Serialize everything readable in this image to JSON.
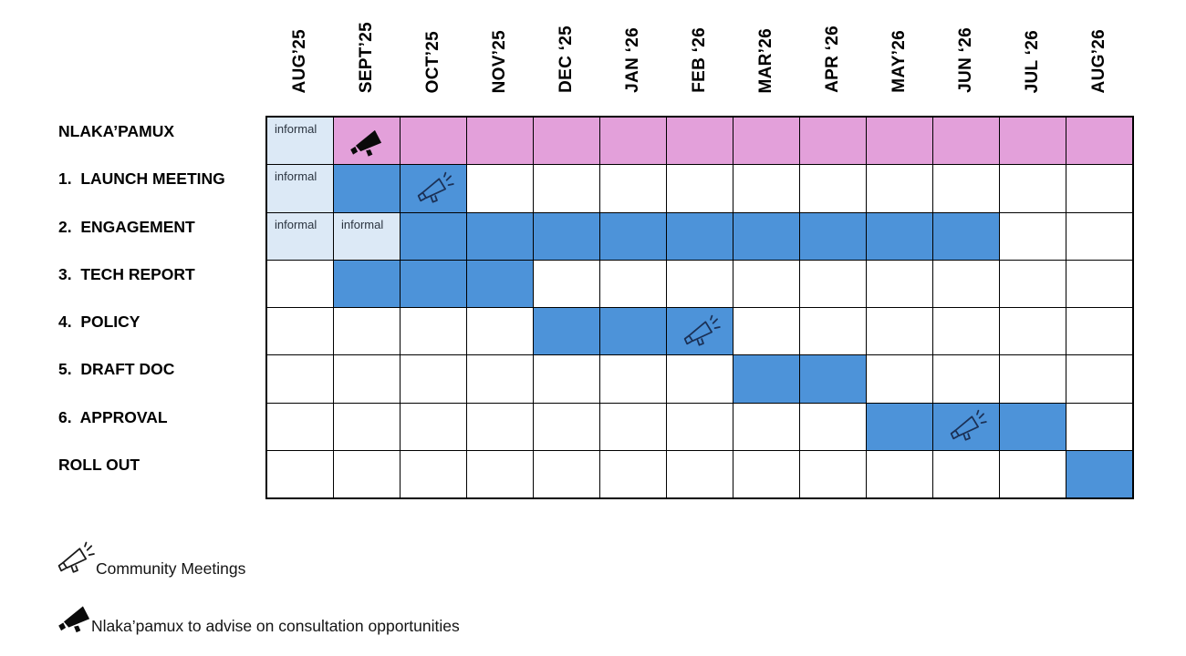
{
  "chart_data": {
    "type": "table",
    "subtype": "gantt-schedule",
    "columns": [
      "AUG’25",
      "SEPT’25",
      "OCT’25",
      "NOV’25",
      "DEC ‘25",
      "JAN ‘26",
      "FEB ‘26",
      "MAR’26",
      "APR ‘26",
      "MAY’26",
      "JUN ‘26",
      "JUL ‘26",
      "AUG’26"
    ],
    "informal_cell_text": "informal",
    "rows": [
      {
        "label": "NLAKA’PAMUX",
        "cells": [
          "informal",
          "pink-icon-solid",
          "pink",
          "pink",
          "pink",
          "pink",
          "pink",
          "pink",
          "pink",
          "pink",
          "pink",
          "pink",
          "pink"
        ]
      },
      {
        "label": "1.  LAUNCH MEETING",
        "cells": [
          "informal",
          "blue",
          "blue-icon-outline",
          "empty",
          "empty",
          "empty",
          "empty",
          "empty",
          "empty",
          "empty",
          "empty",
          "empty",
          "empty"
        ]
      },
      {
        "label": "2.  ENGAGEMENT",
        "cells": [
          "informal",
          "informal",
          "blue",
          "blue",
          "blue",
          "blue",
          "blue",
          "blue",
          "blue",
          "blue",
          "blue",
          "empty",
          "empty"
        ]
      },
      {
        "label": "3.  TECH REPORT",
        "cells": [
          "empty",
          "blue",
          "blue",
          "blue",
          "empty",
          "empty",
          "empty",
          "empty",
          "empty",
          "empty",
          "empty",
          "empty",
          "empty"
        ]
      },
      {
        "label": "4.  POLICY",
        "cells": [
          "empty",
          "empty",
          "empty",
          "empty",
          "blue",
          "blue",
          "blue-icon-outline",
          "empty",
          "empty",
          "empty",
          "empty",
          "empty",
          "empty"
        ]
      },
      {
        "label": "5.  DRAFT DOC",
        "cells": [
          "empty",
          "empty",
          "empty",
          "empty",
          "empty",
          "empty",
          "empty",
          "blue",
          "blue",
          "empty",
          "empty",
          "empty",
          "empty"
        ]
      },
      {
        "label": "6.  APPROVAL",
        "cells": [
          "empty",
          "empty",
          "empty",
          "empty",
          "empty",
          "empty",
          "empty",
          "empty",
          "empty",
          "blue",
          "blue-icon-outline",
          "blue",
          "empty"
        ]
      },
      {
        "label": "ROLL OUT",
        "cells": [
          "empty",
          "empty",
          "empty",
          "empty",
          "empty",
          "empty",
          "empty",
          "empty",
          "empty",
          "empty",
          "empty",
          "empty",
          "blue"
        ]
      }
    ],
    "task_spans": [
      {
        "task": "NLAKA’PAMUX",
        "informal_months": [
          "AUG’25"
        ],
        "active_months": [
          "SEPT’25",
          "AUG’26"
        ],
        "bar_color": "pink",
        "marker": {
          "type": "advise",
          "month": "SEPT’25"
        }
      },
      {
        "task": "1.  LAUNCH MEETING",
        "informal_months": [
          "AUG’25"
        ],
        "active_months": [
          "SEPT’25",
          "OCT’25"
        ],
        "bar_color": "blue",
        "marker": {
          "type": "community-meeting",
          "month": "OCT’25"
        }
      },
      {
        "task": "2.  ENGAGEMENT",
        "informal_months": [
          "AUG’25",
          "SEPT’25"
        ],
        "active_months": [
          "OCT’25",
          "JUN ‘26"
        ],
        "bar_color": "blue",
        "marker": null
      },
      {
        "task": "3.  TECH REPORT",
        "informal_months": [],
        "active_months": [
          "SEPT’25",
          "NOV’25"
        ],
        "bar_color": "blue",
        "marker": null
      },
      {
        "task": "4.  POLICY",
        "informal_months": [],
        "active_months": [
          "DEC ‘25",
          "FEB ‘26"
        ],
        "bar_color": "blue",
        "marker": {
          "type": "community-meeting",
          "month": "FEB ‘26"
        }
      },
      {
        "task": "5.  DRAFT DOC",
        "informal_months": [],
        "active_months": [
          "MAR’26",
          "APR ‘26"
        ],
        "bar_color": "blue",
        "marker": null
      },
      {
        "task": "6.  APPROVAL",
        "informal_months": [],
        "active_months": [
          "MAY’26",
          "JUL ‘26"
        ],
        "bar_color": "blue",
        "marker": {
          "type": "community-meeting",
          "month": "JUN ‘26"
        }
      },
      {
        "task": "ROLL OUT",
        "informal_months": [],
        "active_months": [
          "AUG’26",
          "AUG’26"
        ],
        "bar_color": "blue",
        "marker": null
      }
    ]
  },
  "legend": {
    "items": [
      {
        "icon": "megaphone-outline-icon",
        "label": "Community Meetings"
      },
      {
        "icon": "megaphone-solid-icon",
        "label": "Nlaka’pamux to advise on consultation opportunities"
      }
    ]
  },
  "colors": {
    "pink": "#E3A0DA",
    "blue": "#4D93D9",
    "informal_bg": "#DCE9F6",
    "informal_text": "#2B3440",
    "grid_border": "#000000",
    "icon_navy": "#1B3055",
    "icon_black": "#0A0A0A"
  }
}
